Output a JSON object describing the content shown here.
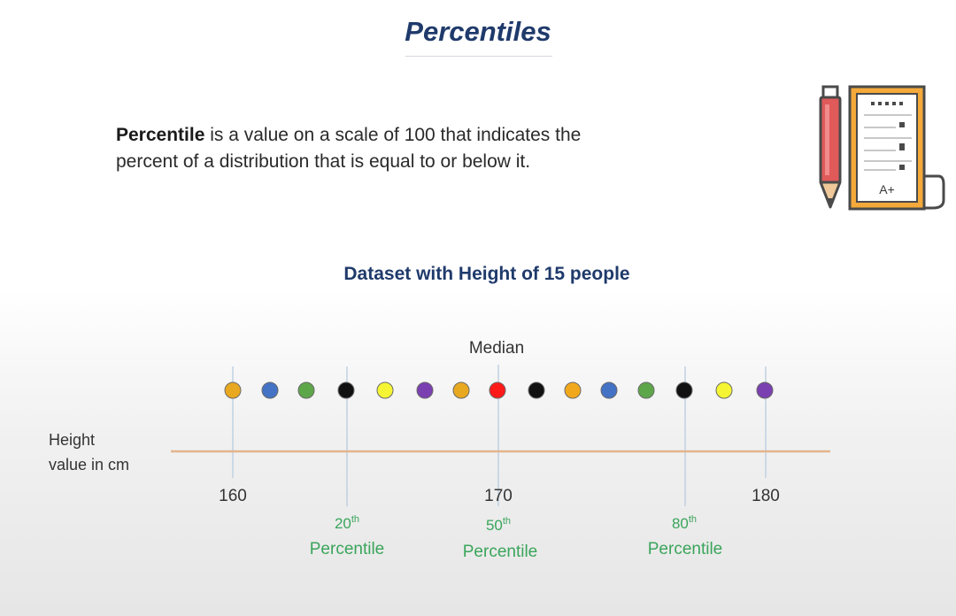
{
  "slide": {
    "title": "Percentiles",
    "definition": {
      "term": "Percentile",
      "line1_rest": " is a value on a scale of 100 that indicates the",
      "line2": "percent of a distribution that is equal to or below it."
    },
    "icon": "pencil-and-graded-paper-icon",
    "icon_grade": "A+"
  },
  "chart_data": {
    "type": "scatter",
    "title": "Dataset with Height of 15 people",
    "ylabel_line1": "Height",
    "ylabel_line2": "value in cm",
    "median_label": "Median",
    "tick_labels": [
      "160",
      "170",
      "180"
    ],
    "points": [
      {
        "color": "#e8a820"
      },
      {
        "color": "#4472c4"
      },
      {
        "color": "#5da64a"
      },
      {
        "color": "#111111"
      },
      {
        "color": "#f5f533"
      },
      {
        "color": "#7a3fb0"
      },
      {
        "color": "#e8a820"
      },
      {
        "color": "#ff1a1a"
      },
      {
        "color": "#111111"
      },
      {
        "color": "#f2a81c"
      },
      {
        "color": "#4472c4"
      },
      {
        "color": "#5da64a"
      },
      {
        "color": "#111111"
      },
      {
        "color": "#f5f533"
      },
      {
        "color": "#7a3fb0"
      }
    ],
    "percentiles": [
      {
        "number": "20",
        "suffix": "th",
        "word": "Percentile"
      },
      {
        "number": "50",
        "suffix": "th",
        "word": "Percentile"
      },
      {
        "number": "80",
        "suffix": "th",
        "word": "Percentile"
      }
    ],
    "axis_color": "#e2b48c",
    "percentile_color": "#3aa55b"
  }
}
